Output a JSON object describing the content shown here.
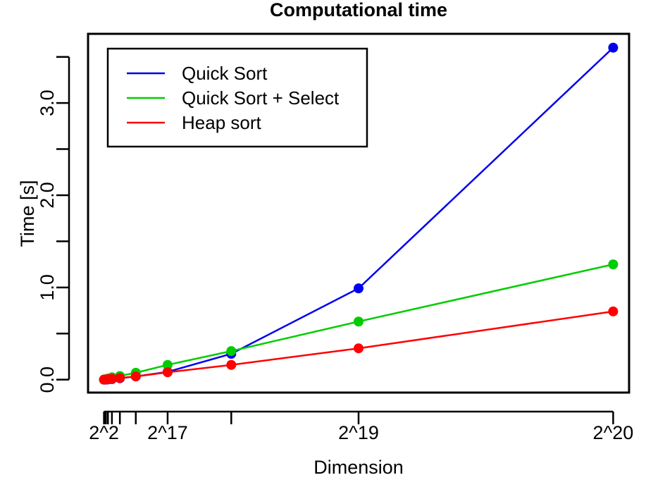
{
  "chart_data": {
    "type": "line",
    "title": "Computational time",
    "xlabel": "Dimension",
    "ylabel": "Time [s]",
    "xlim": [
      -32768,
      1081344
    ],
    "ylim": [
      -0.14,
      3.75
    ],
    "x": [
      4,
      2048,
      4096,
      8192,
      16384,
      32768,
      65536,
      131072,
      262144,
      524288,
      1048576
    ],
    "x_ticks": [
      4,
      2048,
      4096,
      8192,
      16384,
      32768,
      65536,
      131072,
      262144,
      524288,
      1048576
    ],
    "x_tick_labels": [
      {
        "x": 4,
        "label": "2^2"
      },
      {
        "x": 131072,
        "label": "2^17"
      },
      {
        "x": 524288,
        "label": "2^19"
      },
      {
        "x": 1048576,
        "label": "2^20"
      }
    ],
    "y_ticks": [
      0.0,
      0.5,
      1.0,
      1.5,
      2.0,
      2.5,
      3.0,
      3.5
    ],
    "y_tick_labels": [
      {
        "y": 0.0,
        "label": "0.0"
      },
      {
        "y": 1.0,
        "label": "1.0"
      },
      {
        "y": 2.0,
        "label": "2.0"
      },
      {
        "y": 3.0,
        "label": "3.0"
      }
    ],
    "grid": false,
    "legend_position": "top-left",
    "series": [
      {
        "name": "Quick Sort",
        "color": "#0000ee",
        "values": [
          0.0,
          0.0,
          0.0,
          0.002,
          0.006,
          0.015,
          0.035,
          0.085,
          0.28,
          0.99,
          3.6
        ]
      },
      {
        "name": "Quick Sort + Select",
        "color": "#00cd00",
        "values": [
          0.0,
          0.002,
          0.005,
          0.012,
          0.025,
          0.04,
          0.075,
          0.16,
          0.31,
          0.63,
          1.25
        ]
      },
      {
        "name": "Heap sort",
        "color": "#ff0000",
        "values": [
          0.0,
          0.001,
          0.002,
          0.005,
          0.01,
          0.018,
          0.035,
          0.08,
          0.16,
          0.34,
          0.74
        ]
      }
    ]
  }
}
